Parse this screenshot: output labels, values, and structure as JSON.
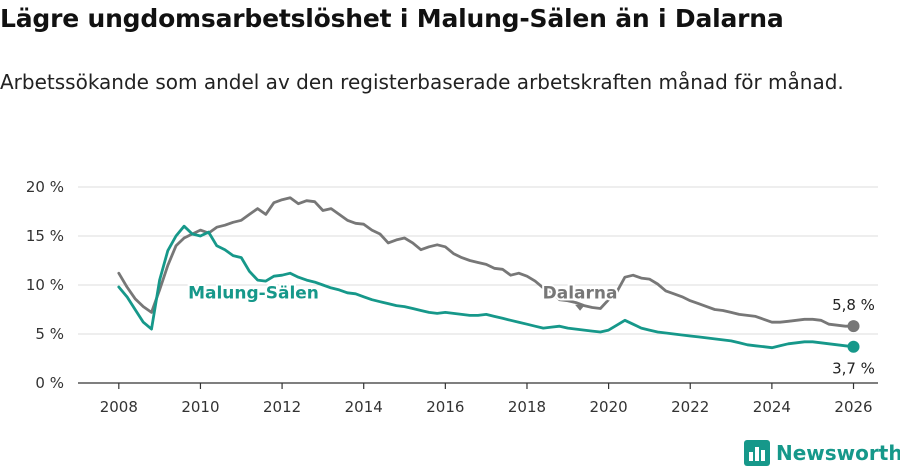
{
  "header": {
    "title": "Lägre ungdomsarbetslöshet i Malung-Sälen än i Dalarna",
    "subtitle": "Arbetssökande som andel av den registerbaserade arbetskraften månad för månad."
  },
  "brand": {
    "name": "Newsworthy",
    "icon": "bar-chart-icon",
    "color": "#16988a"
  },
  "chart_data": {
    "type": "line",
    "xlim": [
      2007.0,
      2026.6
    ],
    "ylim": [
      0,
      20
    ],
    "x_ticks": [
      2008,
      2010,
      2012,
      2014,
      2016,
      2018,
      2020,
      2022,
      2024,
      2026
    ],
    "x_tick_labels": [
      "2008",
      "2010",
      "2012",
      "2014",
      "2016",
      "2018",
      "2020",
      "2022",
      "2024",
      "2026"
    ],
    "y_ticks": [
      0,
      5,
      10,
      15,
      20
    ],
    "y_tick_labels": [
      "0 %",
      "5 %",
      "10 %",
      "15 %",
      "20 %"
    ],
    "grid": true,
    "series": [
      {
        "name": "Dalarna",
        "color": "#777777",
        "label": "Dalarna",
        "label_anchor": [
          2019.3,
          8.6
        ],
        "end_label": "5,8 %",
        "points": [
          [
            2008.0,
            11.2
          ],
          [
            2008.2,
            9.8
          ],
          [
            2008.4,
            8.6
          ],
          [
            2008.6,
            7.8
          ],
          [
            2008.8,
            7.2
          ],
          [
            2009.0,
            9.5
          ],
          [
            2009.2,
            12.0
          ],
          [
            2009.4,
            14.0
          ],
          [
            2009.6,
            14.8
          ],
          [
            2009.8,
            15.2
          ],
          [
            2010.0,
            15.6
          ],
          [
            2010.2,
            15.3
          ],
          [
            2010.4,
            15.9
          ],
          [
            2010.6,
            16.1
          ],
          [
            2010.8,
            16.4
          ],
          [
            2011.0,
            16.6
          ],
          [
            2011.2,
            17.2
          ],
          [
            2011.4,
            17.8
          ],
          [
            2011.6,
            17.2
          ],
          [
            2011.8,
            18.4
          ],
          [
            2012.0,
            18.7
          ],
          [
            2012.2,
            18.9
          ],
          [
            2012.4,
            18.3
          ],
          [
            2012.6,
            18.6
          ],
          [
            2012.8,
            18.5
          ],
          [
            2013.0,
            17.6
          ],
          [
            2013.2,
            17.8
          ],
          [
            2013.4,
            17.2
          ],
          [
            2013.6,
            16.6
          ],
          [
            2013.8,
            16.3
          ],
          [
            2014.0,
            16.2
          ],
          [
            2014.2,
            15.6
          ],
          [
            2014.4,
            15.2
          ],
          [
            2014.6,
            14.3
          ],
          [
            2014.8,
            14.6
          ],
          [
            2015.0,
            14.8
          ],
          [
            2015.2,
            14.3
          ],
          [
            2015.4,
            13.6
          ],
          [
            2015.6,
            13.9
          ],
          [
            2015.8,
            14.1
          ],
          [
            2016.0,
            13.9
          ],
          [
            2016.2,
            13.2
          ],
          [
            2016.4,
            12.8
          ],
          [
            2016.6,
            12.5
          ],
          [
            2016.8,
            12.3
          ],
          [
            2017.0,
            12.1
          ],
          [
            2017.2,
            11.7
          ],
          [
            2017.4,
            11.6
          ],
          [
            2017.6,
            11.0
          ],
          [
            2017.8,
            11.2
          ],
          [
            2018.0,
            10.9
          ],
          [
            2018.2,
            10.4
          ],
          [
            2018.4,
            9.7
          ],
          [
            2018.6,
            9.3
          ],
          [
            2018.8,
            8.5
          ],
          [
            2019.0,
            8.4
          ],
          [
            2019.2,
            8.2
          ],
          [
            2019.4,
            7.9
          ],
          [
            2019.6,
            7.7
          ],
          [
            2019.8,
            7.6
          ],
          [
            2020.0,
            8.5
          ],
          [
            2020.2,
            9.3
          ],
          [
            2020.4,
            10.8
          ],
          [
            2020.6,
            11.0
          ],
          [
            2020.8,
            10.7
          ],
          [
            2021.0,
            10.6
          ],
          [
            2021.2,
            10.1
          ],
          [
            2021.4,
            9.4
          ],
          [
            2021.6,
            9.1
          ],
          [
            2021.8,
            8.8
          ],
          [
            2022.0,
            8.4
          ],
          [
            2022.2,
            8.1
          ],
          [
            2022.4,
            7.8
          ],
          [
            2022.6,
            7.5
          ],
          [
            2022.8,
            7.4
          ],
          [
            2023.0,
            7.2
          ],
          [
            2023.2,
            7.0
          ],
          [
            2023.4,
            6.9
          ],
          [
            2023.6,
            6.8
          ],
          [
            2023.8,
            6.5
          ],
          [
            2024.0,
            6.2
          ],
          [
            2024.2,
            6.2
          ],
          [
            2024.4,
            6.3
          ],
          [
            2024.6,
            6.4
          ],
          [
            2024.8,
            6.5
          ],
          [
            2025.0,
            6.5
          ],
          [
            2025.2,
            6.4
          ],
          [
            2025.4,
            6.0
          ],
          [
            2025.6,
            5.9
          ],
          [
            2025.8,
            5.8
          ],
          [
            2026.0,
            5.8
          ]
        ]
      },
      {
        "name": "Malung-Sälen",
        "color": "#16988a",
        "label": "Malung-Sälen",
        "label_anchor": [
          2011.3,
          8.6
        ],
        "end_label": "3,7 %",
        "points": [
          [
            2008.0,
            9.8
          ],
          [
            2008.2,
            8.8
          ],
          [
            2008.4,
            7.5
          ],
          [
            2008.6,
            6.2
          ],
          [
            2008.8,
            5.5
          ],
          [
            2009.0,
            10.5
          ],
          [
            2009.2,
            13.5
          ],
          [
            2009.4,
            15.0
          ],
          [
            2009.6,
            16.0
          ],
          [
            2009.8,
            15.2
          ],
          [
            2010.0,
            15.0
          ],
          [
            2010.2,
            15.4
          ],
          [
            2010.4,
            14.0
          ],
          [
            2010.6,
            13.6
          ],
          [
            2010.8,
            13.0
          ],
          [
            2011.0,
            12.8
          ],
          [
            2011.2,
            11.4
          ],
          [
            2011.4,
            10.5
          ],
          [
            2011.6,
            10.4
          ],
          [
            2011.8,
            10.9
          ],
          [
            2012.0,
            11.0
          ],
          [
            2012.2,
            11.2
          ],
          [
            2012.4,
            10.8
          ],
          [
            2012.6,
            10.5
          ],
          [
            2012.8,
            10.3
          ],
          [
            2013.0,
            10.0
          ],
          [
            2013.2,
            9.7
          ],
          [
            2013.4,
            9.5
          ],
          [
            2013.6,
            9.2
          ],
          [
            2013.8,
            9.1
          ],
          [
            2014.0,
            8.8
          ],
          [
            2014.2,
            8.5
          ],
          [
            2014.4,
            8.3
          ],
          [
            2014.6,
            8.1
          ],
          [
            2014.8,
            7.9
          ],
          [
            2015.0,
            7.8
          ],
          [
            2015.2,
            7.6
          ],
          [
            2015.4,
            7.4
          ],
          [
            2015.6,
            7.2
          ],
          [
            2015.8,
            7.1
          ],
          [
            2016.0,
            7.2
          ],
          [
            2016.2,
            7.1
          ],
          [
            2016.4,
            7.0
          ],
          [
            2016.6,
            6.9
          ],
          [
            2016.8,
            6.9
          ],
          [
            2017.0,
            7.0
          ],
          [
            2017.2,
            6.8
          ],
          [
            2017.4,
            6.6
          ],
          [
            2017.6,
            6.4
          ],
          [
            2017.8,
            6.2
          ],
          [
            2018.0,
            6.0
          ],
          [
            2018.2,
            5.8
          ],
          [
            2018.4,
            5.6
          ],
          [
            2018.6,
            5.7
          ],
          [
            2018.8,
            5.8
          ],
          [
            2019.0,
            5.6
          ],
          [
            2019.2,
            5.5
          ],
          [
            2019.4,
            5.4
          ],
          [
            2019.6,
            5.3
          ],
          [
            2019.8,
            5.2
          ],
          [
            2020.0,
            5.4
          ],
          [
            2020.2,
            5.9
          ],
          [
            2020.4,
            6.4
          ],
          [
            2020.6,
            6.0
          ],
          [
            2020.8,
            5.6
          ],
          [
            2021.0,
            5.4
          ],
          [
            2021.2,
            5.2
          ],
          [
            2021.4,
            5.1
          ],
          [
            2021.6,
            5.0
          ],
          [
            2021.8,
            4.9
          ],
          [
            2022.0,
            4.8
          ],
          [
            2022.2,
            4.7
          ],
          [
            2022.4,
            4.6
          ],
          [
            2022.6,
            4.5
          ],
          [
            2022.8,
            4.4
          ],
          [
            2023.0,
            4.3
          ],
          [
            2023.2,
            4.1
          ],
          [
            2023.4,
            3.9
          ],
          [
            2023.6,
            3.8
          ],
          [
            2023.8,
            3.7
          ],
          [
            2024.0,
            3.6
          ],
          [
            2024.2,
            3.8
          ],
          [
            2024.4,
            4.0
          ],
          [
            2024.6,
            4.1
          ],
          [
            2024.8,
            4.2
          ],
          [
            2025.0,
            4.2
          ],
          [
            2025.2,
            4.1
          ],
          [
            2025.4,
            4.0
          ],
          [
            2025.6,
            3.9
          ],
          [
            2025.8,
            3.8
          ],
          [
            2026.0,
            3.7
          ]
        ]
      }
    ]
  }
}
